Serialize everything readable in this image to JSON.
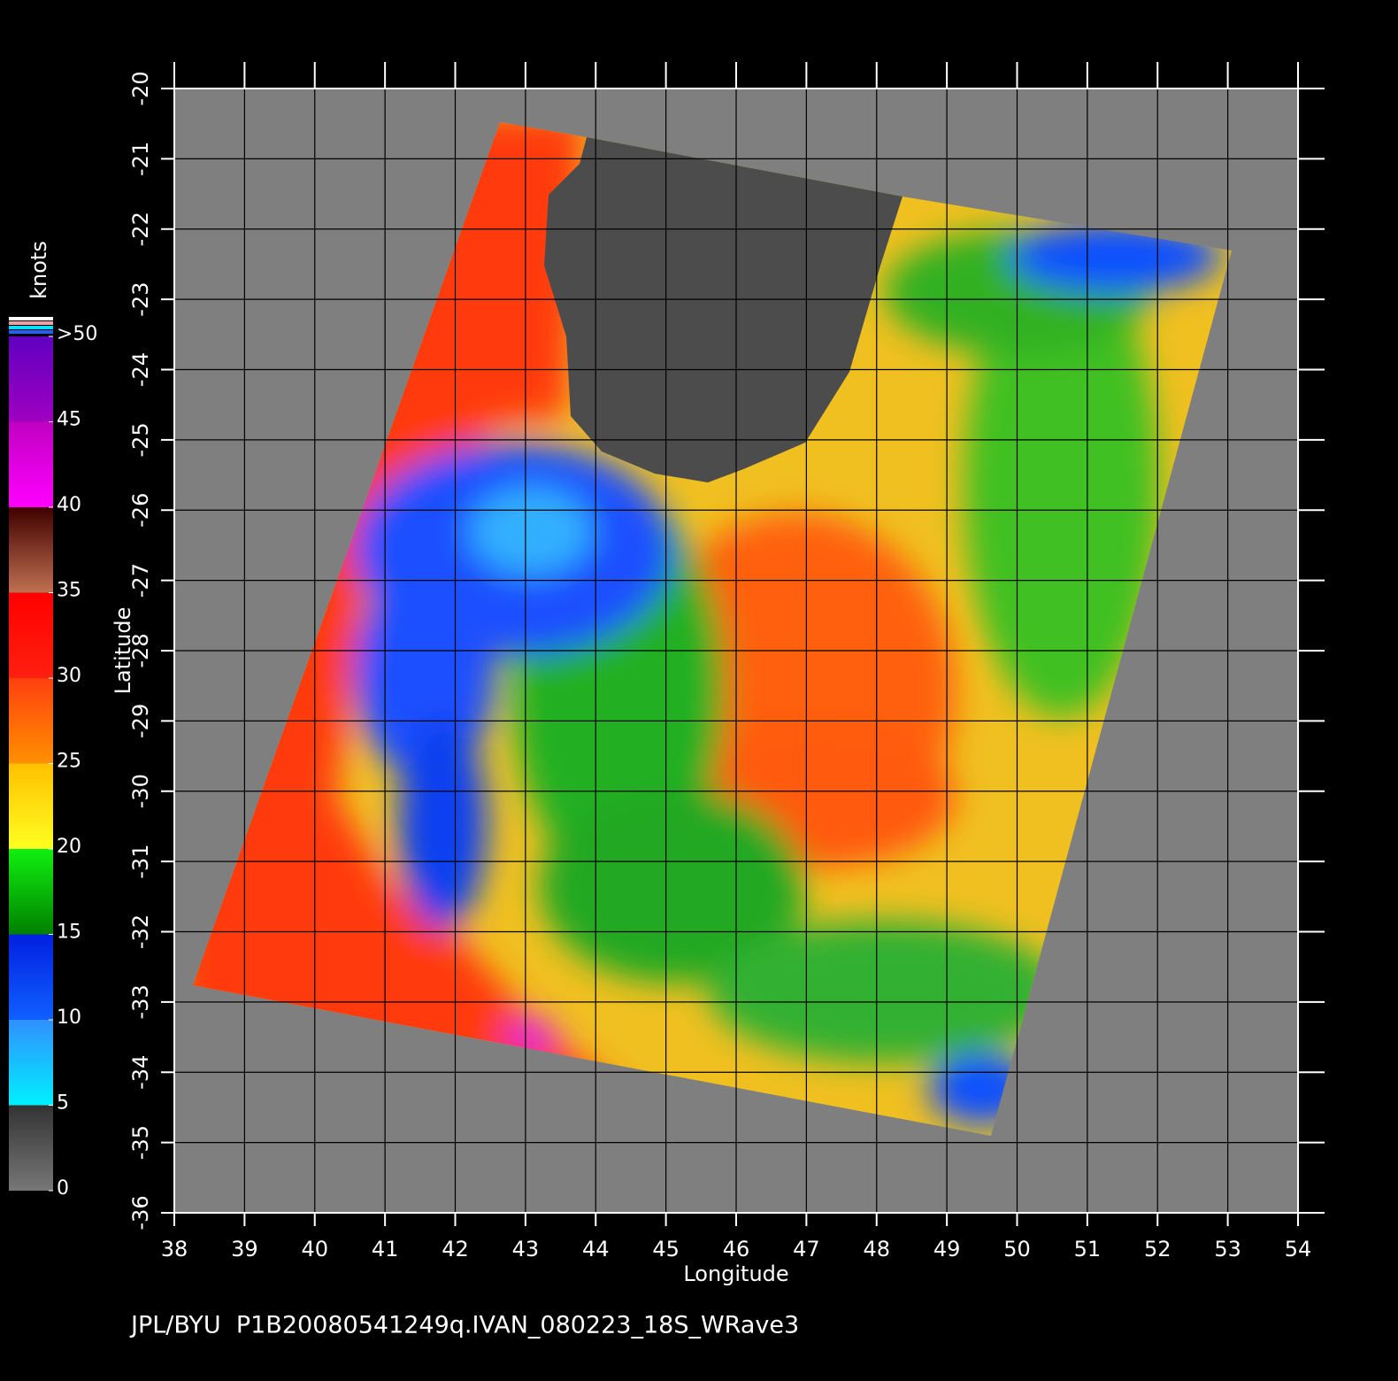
{
  "chart_data": {
    "type": "map",
    "xlabel": "Longitude",
    "ylabel": "Latitude",
    "xlim": [
      38,
      54
    ],
    "ylim": [
      -36,
      -20
    ],
    "xticks": [
      38,
      39,
      40,
      41,
      42,
      43,
      44,
      45,
      46,
      47,
      48,
      49,
      50,
      51,
      52,
      53,
      54
    ],
    "yticks": [
      -20,
      -21,
      -22,
      -23,
      -24,
      -25,
      -26,
      -27,
      -28,
      -29,
      -30,
      -31,
      -32,
      -33,
      -34,
      -35,
      -36
    ],
    "grid": true,
    "colorbar": {
      "label": "knots",
      "lim": [
        0,
        50
      ],
      "ticks": [
        0,
        5,
        10,
        15,
        20,
        25,
        30,
        35,
        40,
        45,
        {
          "value": 50,
          "label": ">50"
        }
      ]
    },
    "caption": "JPL/BYU  P1B20080541249q.IVAN_080223_18S_WRave3"
  }
}
